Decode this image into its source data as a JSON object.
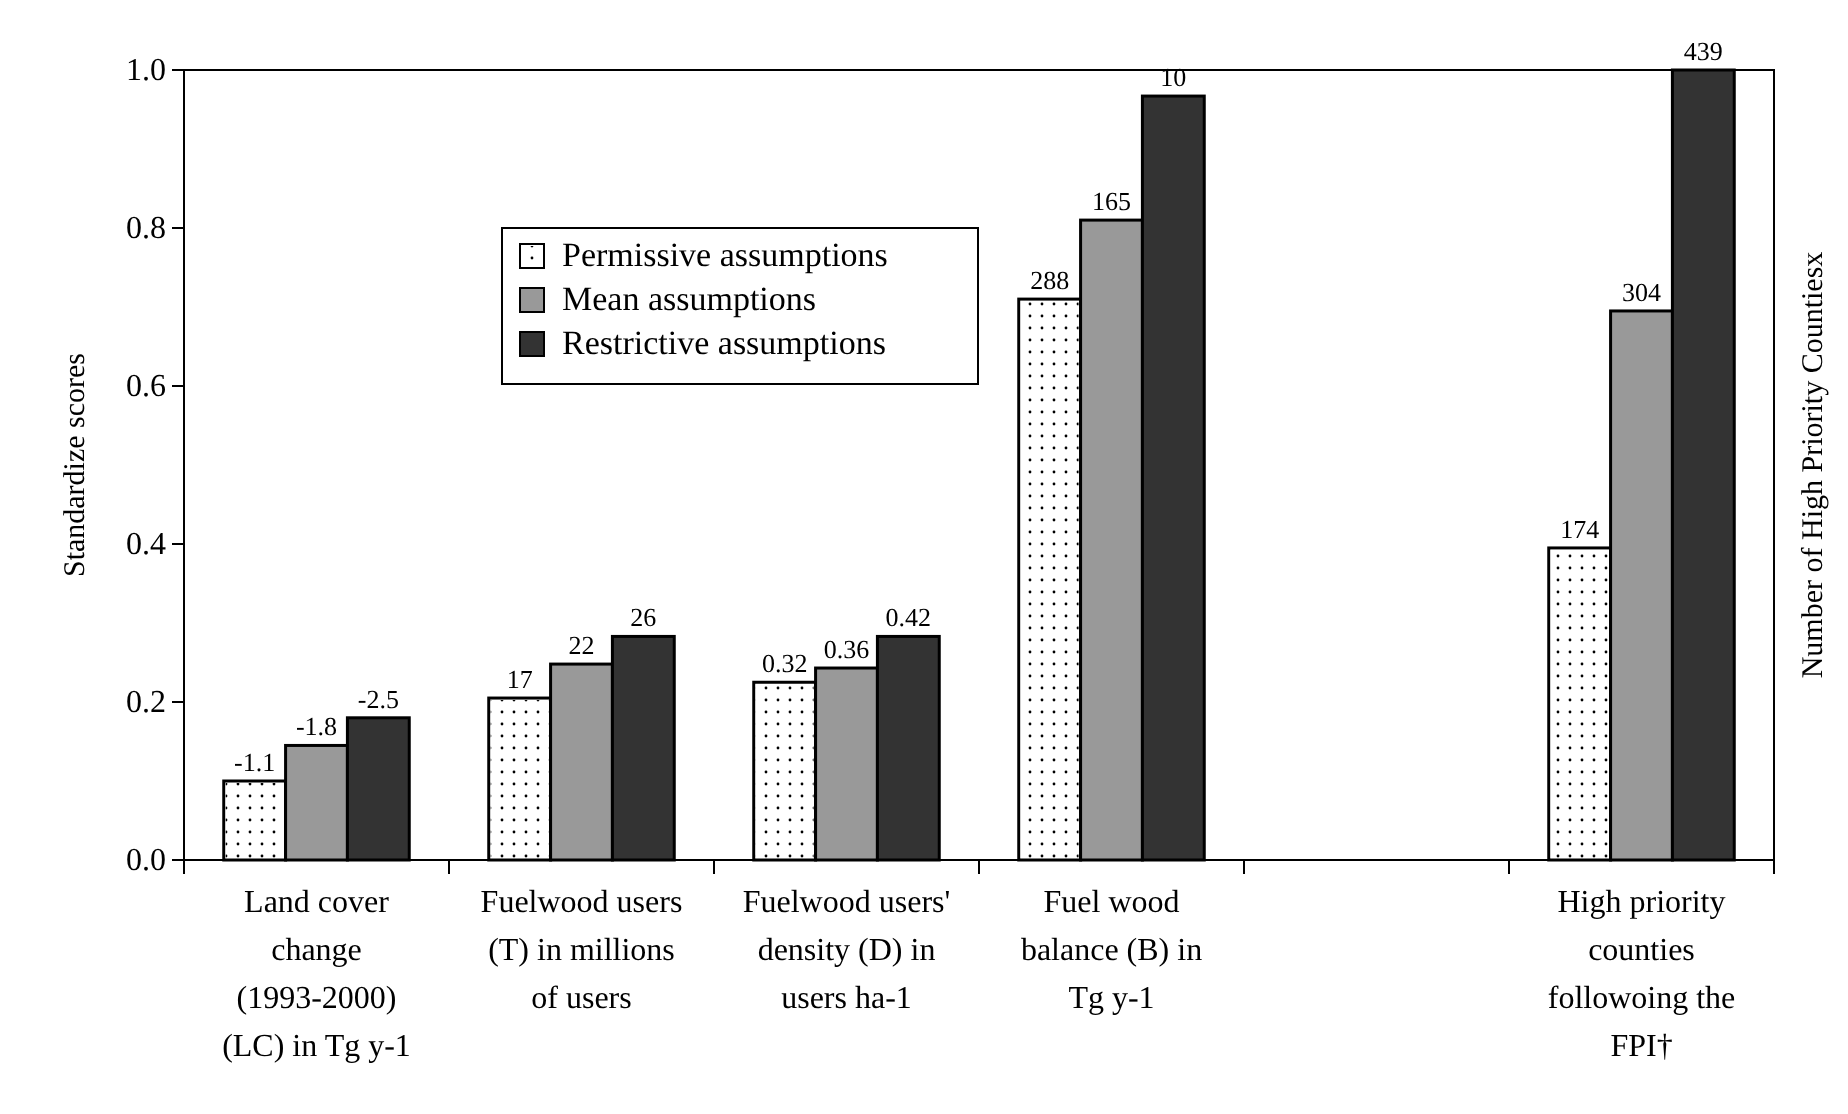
{
  "chart_data": {
    "type": "bar",
    "ylabel": "Standardize scores",
    "y2label": "Number of High Priority Countiesx",
    "categories": [
      "Land cover change (1993-2000) (LC) in Tg y-1",
      "Fuelwood users (T) in millions of users",
      "Fuelwood users' density (D) in users ha-1",
      "Fuel wood balance (B) in Tg y-1",
      null,
      "High priority counties followoing the FPI†"
    ],
    "series": [
      {
        "name": "Permissive assumptions",
        "color": "#ffffff",
        "values": [
          0.1,
          0.205,
          0.225,
          0.71,
          null,
          0.395
        ]
      },
      {
        "name": "Mean assumptions",
        "color": "#999999",
        "values": [
          0.145,
          0.248,
          0.243,
          0.81,
          null,
          0.695
        ]
      },
      {
        "name": "Restrictive assumptions",
        "color": "#333333",
        "values": [
          0.18,
          0.283,
          0.283,
          0.967,
          null,
          1.0
        ]
      }
    ],
    "annotations": [
      "-1.1",
      "-1.8",
      "-2.5",
      "17",
      "22",
      "26",
      "0.32",
      "0.36",
      "0.42",
      "288",
      "165",
      "10",
      "174",
      "304",
      "439"
    ],
    "ylim": [
      0,
      1
    ],
    "yticks": [
      {
        "value": 0,
        "label": "0.0"
      },
      {
        "value": 0.2,
        "label": "0.2"
      },
      {
        "value": 0.4,
        "label": "0.4"
      },
      {
        "value": 0.6,
        "label": "0.6"
      },
      {
        "value": 0.8,
        "label": "0.8"
      },
      {
        "value": 1,
        "label": "1.0"
      }
    ],
    "legend": "top left",
    "grid": false
  }
}
